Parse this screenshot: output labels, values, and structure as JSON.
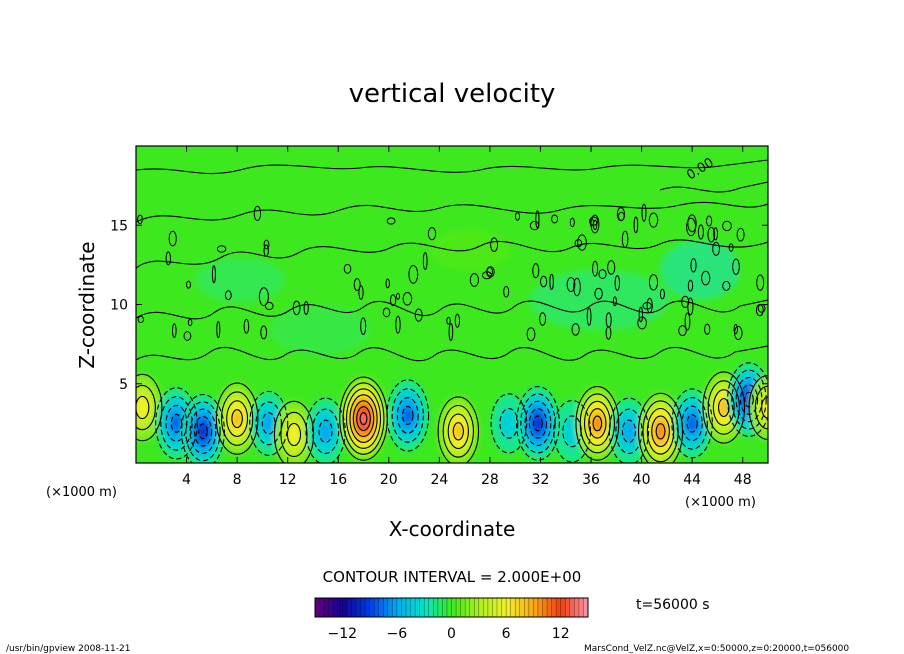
{
  "chart_data": {
    "type": "heatmap",
    "title": "vertical velocity",
    "xlabel": "X-coordinate",
    "ylabel": "Z-coordinate",
    "x_unit_left": "(×1000 m)",
    "x_unit_right": "(×1000 m)",
    "x_ticks": [
      4,
      8,
      12,
      16,
      20,
      24,
      28,
      32,
      36,
      40,
      44,
      48
    ],
    "y_ticks": [
      5,
      10,
      15
    ],
    "xlim": [
      0,
      50
    ],
    "ylim": [
      0,
      20
    ],
    "contour_label": "0.00",
    "contour_interval_label": "CONTOUR INTERVAL = 2.000E+00",
    "time_label": "t=56000 s",
    "colorbar": {
      "ticks": [
        -12,
        -6,
        0,
        6,
        12
      ],
      "vmin": -15,
      "vmax": 15
    },
    "cells": [
      {
        "x": 0.5,
        "z": 3.5,
        "w": 6
      },
      {
        "x": 3.2,
        "z": 2.5,
        "w": -8
      },
      {
        "x": 5.3,
        "z": 2.0,
        "w": -9
      },
      {
        "x": 8.0,
        "z": 2.8,
        "w": 8
      },
      {
        "x": 10.5,
        "z": 2.5,
        "w": -5
      },
      {
        "x": 12.5,
        "z": 1.8,
        "w": 6
      },
      {
        "x": 15.0,
        "z": 2.0,
        "w": -6
      },
      {
        "x": 18.0,
        "z": 2.8,
        "w": 13
      },
      {
        "x": 21.5,
        "z": 3.0,
        "w": -8
      },
      {
        "x": 25.5,
        "z": 2.0,
        "w": 7
      },
      {
        "x": 29.5,
        "z": 2.5,
        "w": -3
      },
      {
        "x": 31.8,
        "z": 2.5,
        "w": -9
      },
      {
        "x": 34.5,
        "z": 2.0,
        "w": -4
      },
      {
        "x": 36.5,
        "z": 2.5,
        "w": 9
      },
      {
        "x": 39.0,
        "z": 2.0,
        "w": -6
      },
      {
        "x": 41.5,
        "z": 2.0,
        "w": 10
      },
      {
        "x": 44.0,
        "z": 2.5,
        "w": -7
      },
      {
        "x": 46.5,
        "z": 3.5,
        "w": 8
      },
      {
        "x": 48.5,
        "z": 4.0,
        "w": -9
      },
      {
        "x": 50.0,
        "z": 3.5,
        "w": 5
      }
    ]
  },
  "footer": {
    "left": "/usr/bin/gpview  2008-11-21",
    "right": "MarsCond_VelZ.nc@VelZ,x=0:50000,z=0:20000,t=056000"
  }
}
